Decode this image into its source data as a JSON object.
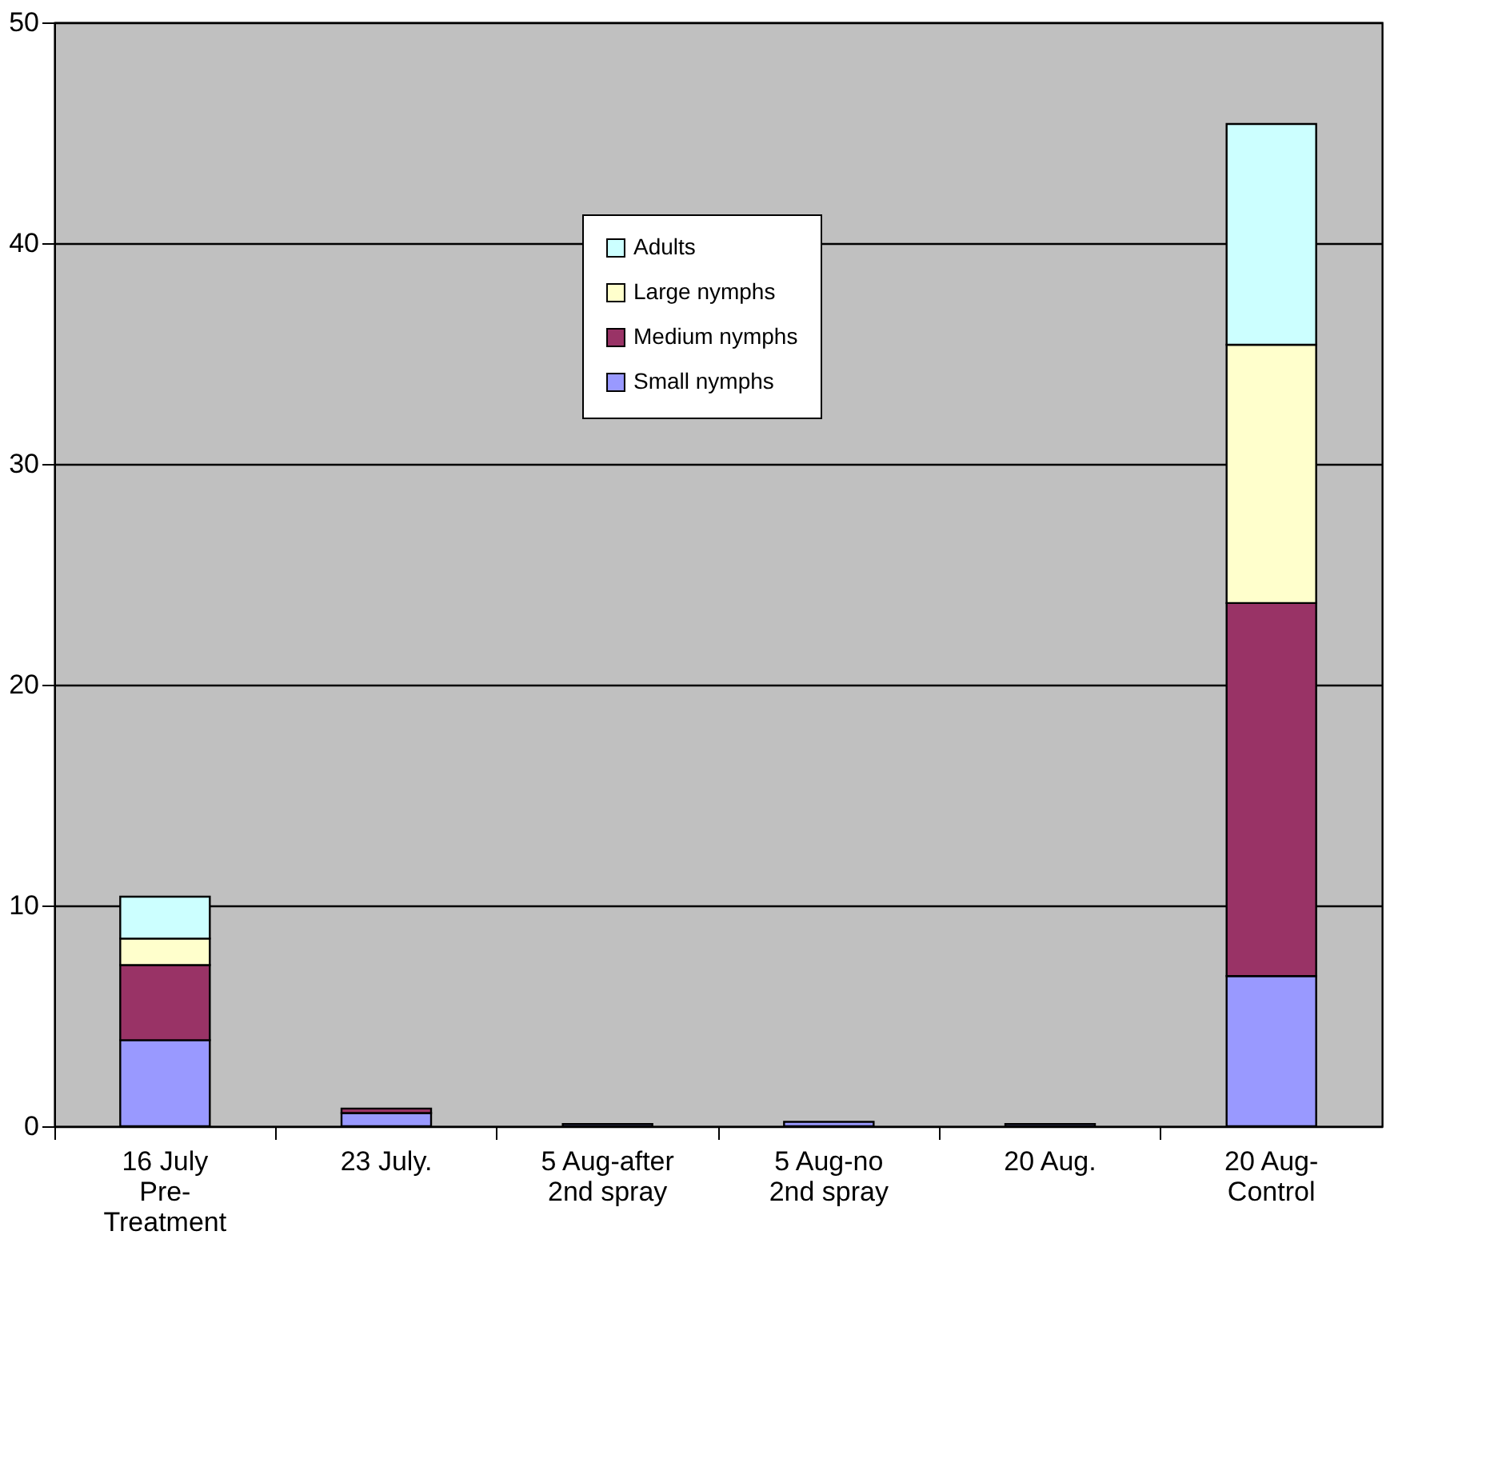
{
  "chart_data": {
    "type": "bar",
    "stacked": true,
    "categories": [
      "16 July\nPre-\nTreatment",
      "23 July.",
      "5 Aug-after\n2nd spray",
      "5 Aug-no\n2nd spray",
      "20 Aug.",
      "20 Aug-\nControl"
    ],
    "series": [
      {
        "name": "Small nymphs",
        "color": "#9999ff",
        "values": [
          3.9,
          0.6,
          0.1,
          0.2,
          0.1,
          6.8
        ]
      },
      {
        "name": "Medium nymphs",
        "color": "#993366",
        "values": [
          3.4,
          0.2,
          null,
          null,
          null,
          16.9
        ]
      },
      {
        "name": "Large nymphs",
        "color": "#ffffcc",
        "values": [
          1.2,
          null,
          null,
          null,
          null,
          11.7
        ]
      },
      {
        "name": "Adults",
        "color": "#ccffff",
        "values": [
          1.9,
          null,
          null,
          null,
          null,
          10.0
        ]
      }
    ],
    "ylim": [
      0,
      50
    ],
    "yticks": [
      0,
      10,
      20,
      30,
      40,
      50
    ],
    "grid": "y",
    "legend": "top"
  }
}
